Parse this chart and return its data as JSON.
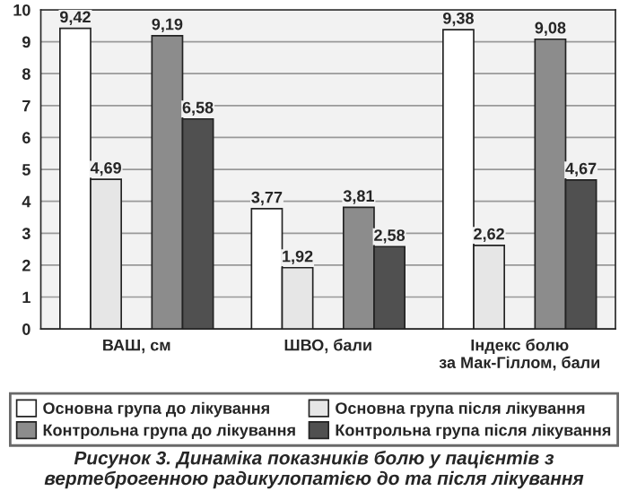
{
  "chart_data": {
    "type": "bar",
    "categories": [
      "ВАШ, см",
      "ШВО, бали",
      "Індекс болю\nза Мак-Гіллом, бали"
    ],
    "series": [
      {
        "name": "Основна група до лікування",
        "color": "#ffffff",
        "values": [
          9.42,
          3.77,
          9.38
        ],
        "value_labels": [
          "9,42",
          "3,77",
          "9,38"
        ]
      },
      {
        "name": "Основна група після лікування",
        "color": "#e6e6e6",
        "values": [
          4.69,
          1.92,
          2.62
        ],
        "value_labels": [
          "4,69",
          "1,92",
          "2,62"
        ]
      },
      {
        "name": "Контрольна група до лікування",
        "color": "#8c8c8c",
        "values": [
          9.19,
          3.81,
          9.08
        ],
        "value_labels": [
          "9,19",
          "3,81",
          "9,08"
        ]
      },
      {
        "name": "Контрольна група після лікування",
        "color": "#505050",
        "values": [
          6.58,
          2.58,
          4.67
        ],
        "value_labels": [
          "6,58",
          "2,58",
          "4,67"
        ]
      }
    ],
    "ylim": [
      0,
      10
    ],
    "yticks": [
      0,
      1,
      2,
      3,
      4,
      5,
      6,
      7,
      8,
      9,
      10
    ],
    "grid": "y",
    "legend": "bottom",
    "annotations": [
      "Рисунок 3. Динаміка показників болю у пацієнтів з\nвертеброгенною радикулопатією до та після лікування"
    ]
  }
}
